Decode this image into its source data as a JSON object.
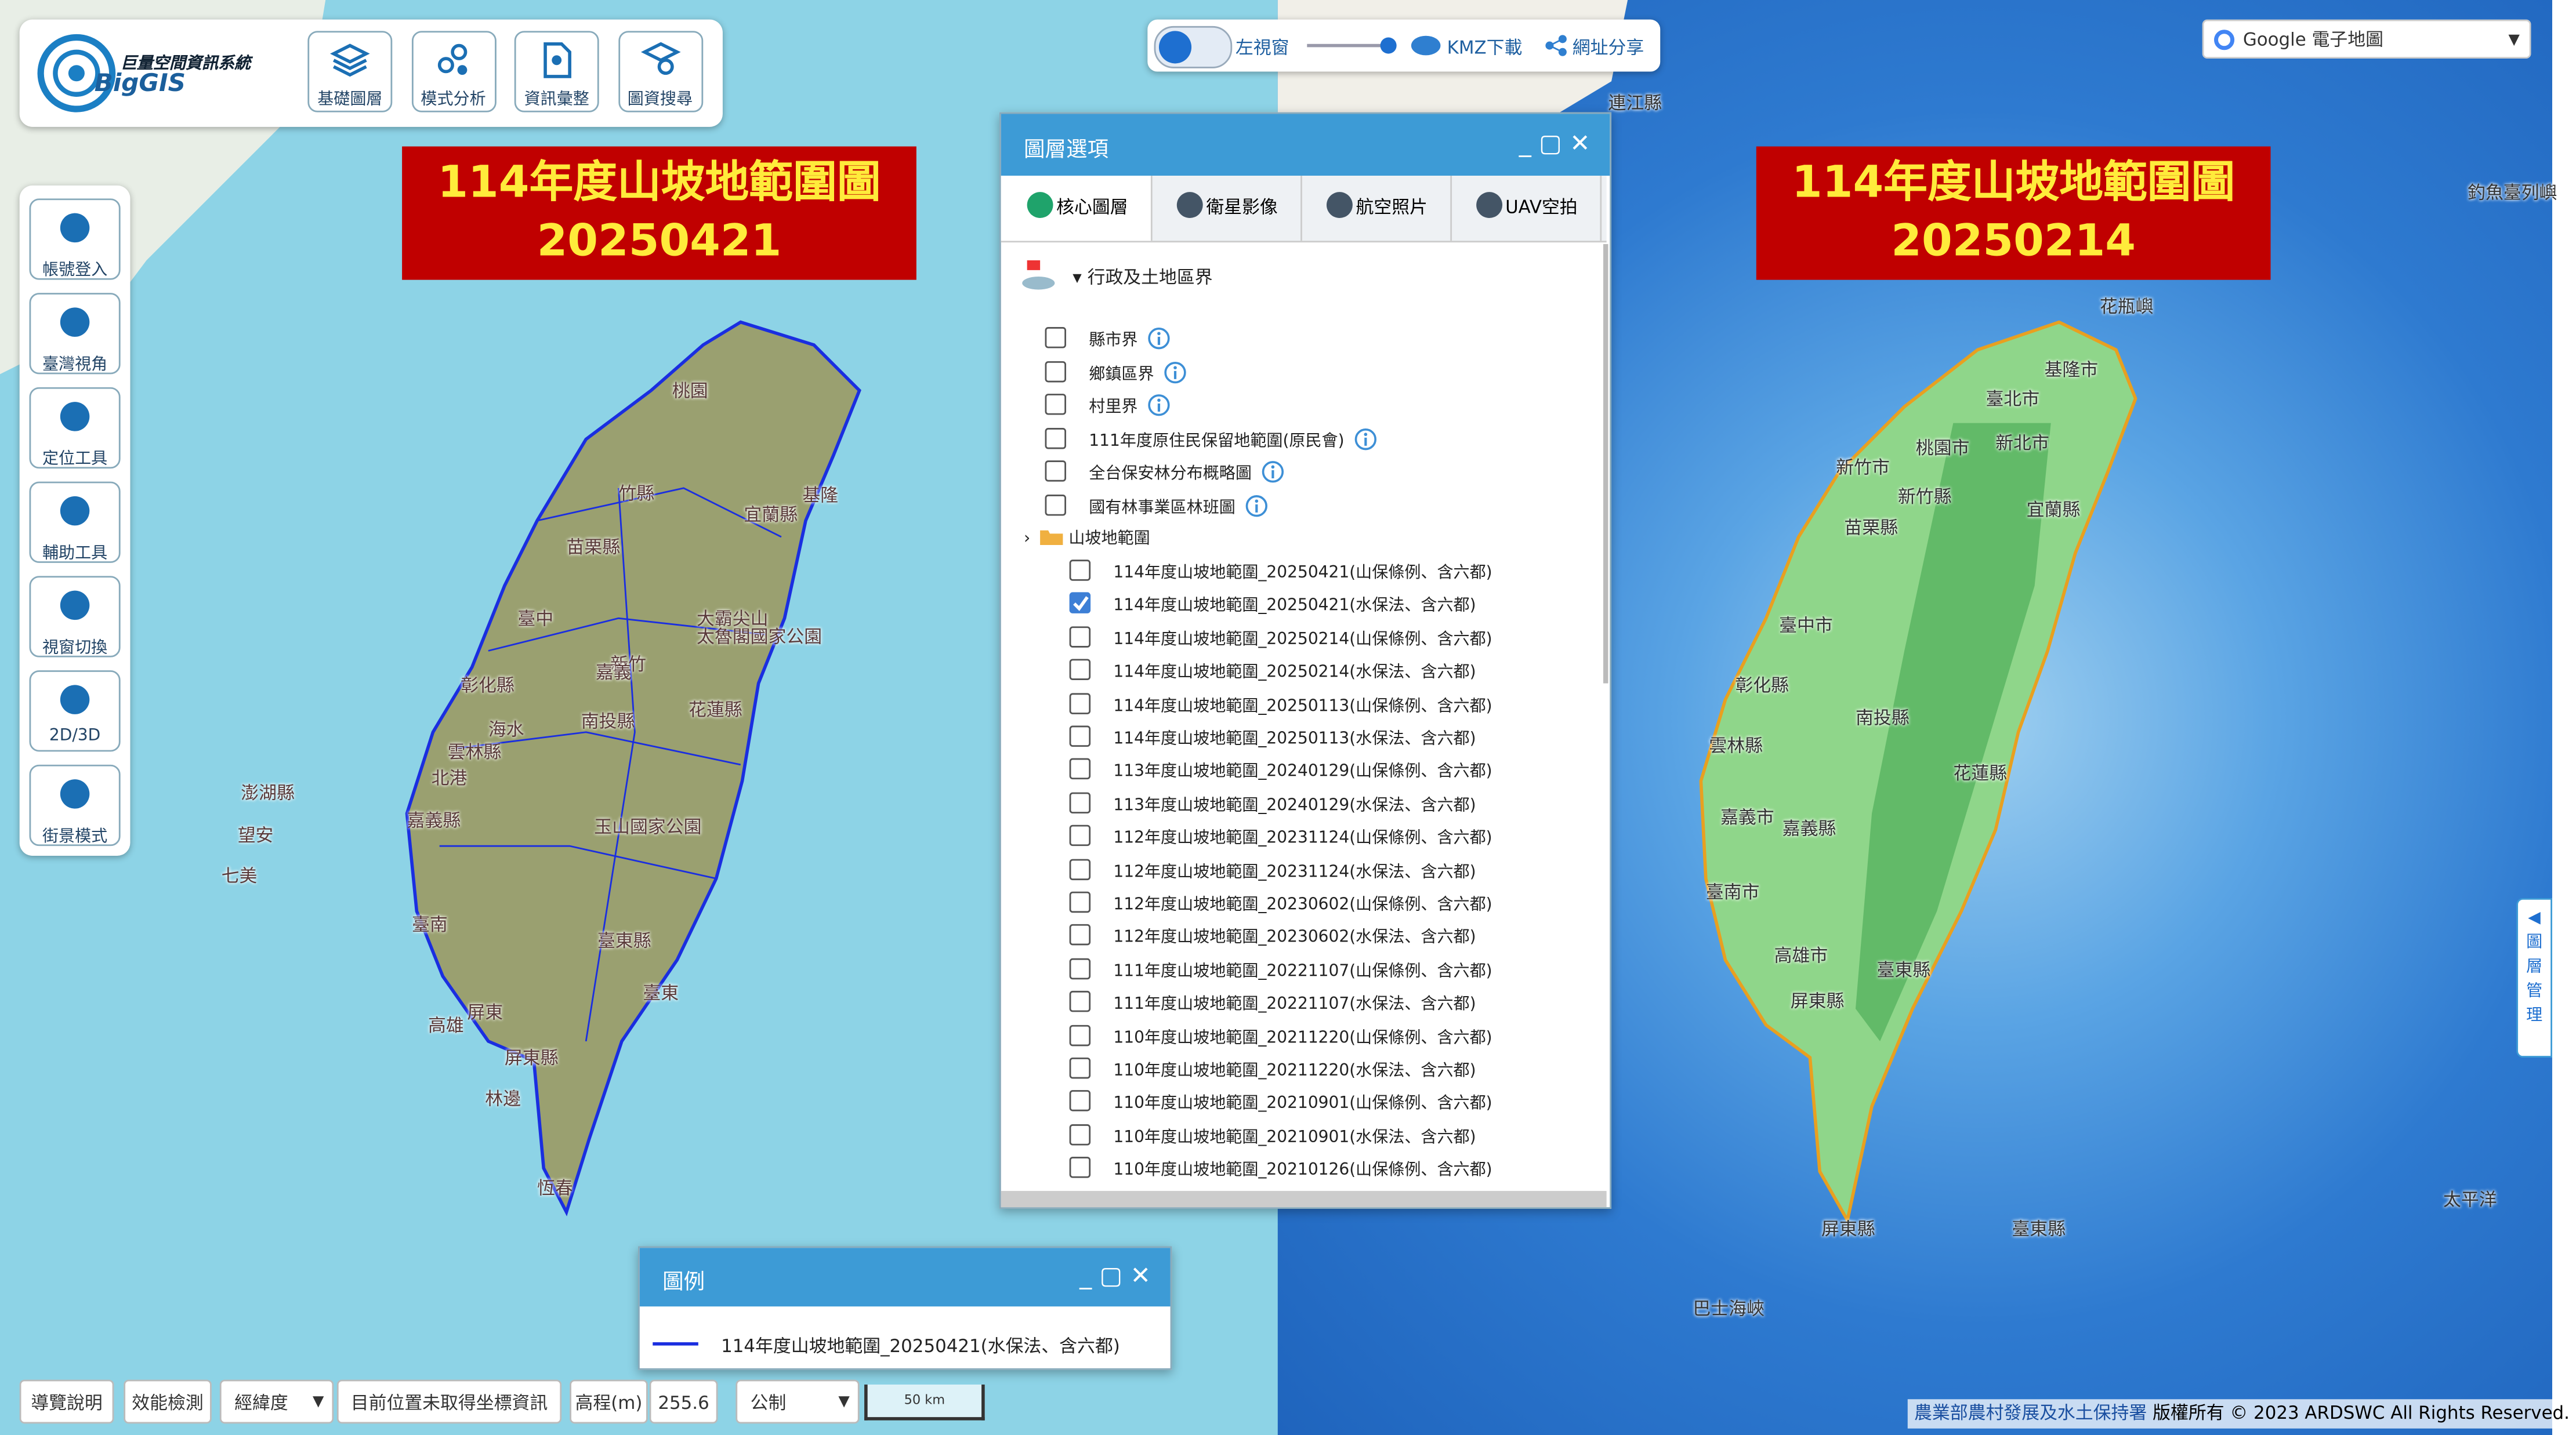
{
  "app": {
    "title": "巨量空間資訊系統",
    "brand": "BigGIS"
  },
  "toolbar": [
    "基礎圖層",
    "模式分析",
    "資訊彙整",
    "圖資搜尋"
  ],
  "sidebar": [
    "帳號登入",
    "臺灣視角",
    "定位工具",
    "輔助工具",
    "視窗切換",
    "2D/3D",
    "街景模式"
  ],
  "top_controls": {
    "left_window": "左視窗",
    "kmz": "KMZ下載",
    "share": "網址分享"
  },
  "basemap_select": "Google 電子地圖",
  "left_map": {
    "title_lines": [
      "114年度山坡地範圍圖",
      "20250421"
    ],
    "labels": [
      "桃園",
      "竹縣",
      "宜蘭縣",
      "基隆",
      "苗栗縣",
      "臺中",
      "大霸尖山",
      "太魯閣國家公園",
      "南投縣",
      "花蓮縣",
      "彰化縣",
      "雲林縣",
      "北港",
      "嘉義縣",
      "玉山國家公園",
      "臺南",
      "臺東縣",
      "高雄",
      "屏東",
      "屏東縣",
      "林邊",
      "恆春",
      "澎湖縣",
      "望安",
      "七美",
      "臺東",
      "新竹",
      "嘉義",
      "海水"
    ]
  },
  "right_map": {
    "title_lines": [
      "114年度山坡地範圍圖",
      "20250214"
    ],
    "labels": [
      "連江縣",
      "釣魚臺列嶼",
      "花瓶嶼",
      "基隆市",
      "臺北市",
      "新北市",
      "桃園市",
      "新竹市",
      "新竹縣",
      "宜蘭縣",
      "苗栗縣",
      "臺中市",
      "彰化縣",
      "南投縣",
      "雲林縣",
      "花蓮縣",
      "嘉義市",
      "嘉義縣",
      "臺南市",
      "高雄市",
      "臺東縣",
      "屏東縣",
      "屏東縣",
      "臺東縣",
      "太平洋",
      "巴士海峽"
    ]
  },
  "layer_panel": {
    "title": "圖層選項",
    "tabs": [
      "核心圖層",
      "衛星影像",
      "航空照片",
      "UAV空拍"
    ],
    "group": "行政及土地區界",
    "group_items": [
      {
        "label": "縣市界",
        "checked": false
      },
      {
        "label": "鄉鎮區界",
        "checked": false
      },
      {
        "label": "村里界",
        "checked": false
      },
      {
        "label": "111年度原住民保留地範圍(原民會)",
        "checked": false
      },
      {
        "label": "全台保安林分布概略圖",
        "checked": false
      },
      {
        "label": "國有林事業區林班圖",
        "checked": false
      }
    ],
    "folder": "山坡地範圍",
    "folder_items": [
      {
        "label": "114年度山坡地範圍_20250421(山保條例、含六都)",
        "checked": false
      },
      {
        "label": "114年度山坡地範圍_20250421(水保法、含六都)",
        "checked": true
      },
      {
        "label": "114年度山坡地範圍_20250214(山保條例、含六都)",
        "checked": false
      },
      {
        "label": "114年度山坡地範圍_20250214(水保法、含六都)",
        "checked": false
      },
      {
        "label": "114年度山坡地範圍_20250113(山保條例、含六都)",
        "checked": false
      },
      {
        "label": "114年度山坡地範圍_20250113(水保法、含六都)",
        "checked": false
      },
      {
        "label": "113年度山坡地範圍_20240129(山保條例、含六都)",
        "checked": false
      },
      {
        "label": "113年度山坡地範圍_20240129(水保法、含六都)",
        "checked": false
      },
      {
        "label": "112年度山坡地範圍_20231124(山保條例、含六都)",
        "checked": false
      },
      {
        "label": "112年度山坡地範圍_20231124(水保法、含六都)",
        "checked": false
      },
      {
        "label": "112年度山坡地範圍_20230602(山保條例、含六都)",
        "checked": false
      },
      {
        "label": "112年度山坡地範圍_20230602(水保法、含六都)",
        "checked": false
      },
      {
        "label": "111年度山坡地範圍_20221107(山保條例、含六都)",
        "checked": false
      },
      {
        "label": "111年度山坡地範圍_20221107(水保法、含六都)",
        "checked": false
      },
      {
        "label": "110年度山坡地範圍_20211220(山保條例、含六都)",
        "checked": false
      },
      {
        "label": "110年度山坡地範圍_20211220(水保法、含六都)",
        "checked": false
      },
      {
        "label": "110年度山坡地範圍_20210901(山保條例、含六都)",
        "checked": false
      },
      {
        "label": "110年度山坡地範圍_20210901(水保法、含六都)",
        "checked": false
      },
      {
        "label": "110年度山坡地範圍_20210126(山保條例、含六都)",
        "checked": false
      }
    ]
  },
  "legend": {
    "title": "圖例",
    "item": "114年度山坡地範圍_20250421(水保法、含六都)"
  },
  "bottom_bar": {
    "guide": "導覽說明",
    "perf": "效能檢測",
    "coord_select": "經緯度",
    "position": "目前位置未取得坐標資訊",
    "elev_label": "高程(m)",
    "elev_value": "255.6",
    "unit_select": "公制",
    "scale": "50 km"
  },
  "attribution": {
    "agency": "農業部農村發展及水土保持署",
    "copyright": "版權所有 © 2023 ARDSWC All Rights Reserved."
  },
  "side_tab": "圖層管理"
}
